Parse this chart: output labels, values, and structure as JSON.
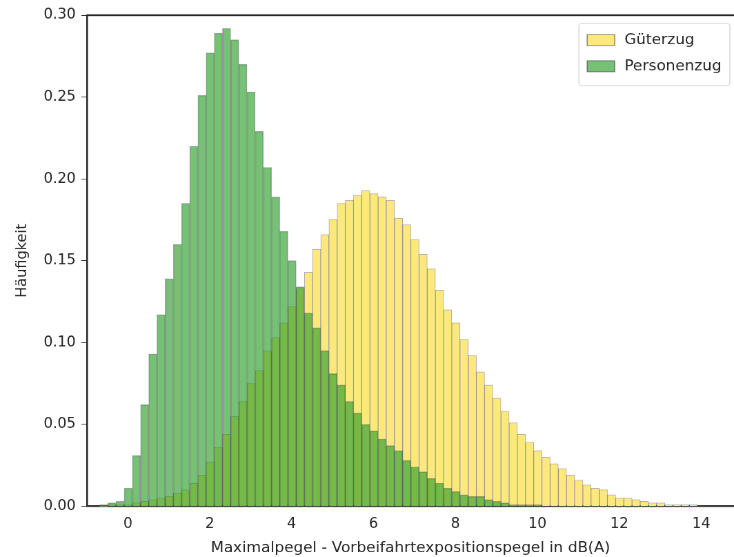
{
  "chart_data": {
    "type": "histogram",
    "xlabel": "Maximalpegel - Vorbeifahrtexpositionspegel in dB(A)",
    "ylabel": "Häufigkeit",
    "bins": [
      -0.69,
      -0.49,
      -0.29,
      -0.09,
      0.11,
      0.31,
      0.51,
      0.71,
      0.91,
      1.11,
      1.31,
      1.51,
      1.71,
      1.91,
      2.11,
      2.31,
      2.51,
      2.71,
      2.91,
      3.11,
      3.31,
      3.51,
      3.71,
      3.91,
      4.11,
      4.31,
      4.51,
      4.71,
      4.91,
      5.11,
      5.31,
      5.51,
      5.71,
      5.91,
      6.11,
      6.31,
      6.51,
      6.71,
      6.91,
      7.11,
      7.31,
      7.51,
      7.71,
      7.91,
      8.11,
      8.31,
      8.51,
      8.71,
      8.91,
      9.11,
      9.31,
      9.51,
      9.71,
      9.91,
      10.11,
      10.31,
      10.51,
      10.71,
      10.91,
      11.11,
      11.31,
      11.51,
      11.71,
      11.91,
      12.11,
      12.31,
      12.51,
      12.71,
      12.91,
      13.11,
      13.31,
      13.51,
      13.71,
      13.91
    ],
    "series": [
      {
        "name": "Güterzug",
        "color": "#fde87c",
        "values": [
          0,
          0.001,
          0.001,
          0.001,
          0.002,
          0.003,
          0.004,
          0.005,
          0.006,
          0.008,
          0.01,
          0.014,
          0.019,
          0.027,
          0.036,
          0.044,
          0.055,
          0.064,
          0.075,
          0.083,
          0.095,
          0.103,
          0.112,
          0.122,
          0.133,
          0.143,
          0.157,
          0.166,
          0.175,
          0.185,
          0.187,
          0.19,
          0.193,
          0.191,
          0.189,
          0.187,
          0.176,
          0.172,
          0.163,
          0.154,
          0.145,
          0.132,
          0.12,
          0.112,
          0.102,
          0.092,
          0.082,
          0.074,
          0.066,
          0.058,
          0.051,
          0.044,
          0.039,
          0.034,
          0.03,
          0.026,
          0.023,
          0.019,
          0.016,
          0.013,
          0.011,
          0.01,
          0.007,
          0.005,
          0.005,
          0.004,
          0.003,
          0.002,
          0.002,
          0.001,
          0.001,
          0.001,
          0.001
        ]
      },
      {
        "name": "Personenzug",
        "color": "#2ca02c",
        "values": [
          0.001,
          0.002,
          0.003,
          0.011,
          0.031,
          0.062,
          0.093,
          0.117,
          0.139,
          0.16,
          0.185,
          0.22,
          0.251,
          0.277,
          0.289,
          0.292,
          0.285,
          0.27,
          0.253,
          0.229,
          0.207,
          0.189,
          0.168,
          0.15,
          0.134,
          0.118,
          0.109,
          0.095,
          0.081,
          0.074,
          0.064,
          0.057,
          0.05,
          0.046,
          0.041,
          0.037,
          0.034,
          0.028,
          0.024,
          0.021,
          0.017,
          0.014,
          0.011,
          0.009,
          0.007,
          0.006,
          0.006,
          0.004,
          0.003,
          0.002,
          0.001,
          0.001,
          0.001,
          0.001,
          null,
          null,
          0,
          0,
          0,
          0,
          0,
          0,
          0,
          0,
          0,
          0,
          0,
          0,
          0,
          0,
          0,
          0,
          0
        ]
      }
    ],
    "xlim": [
      -1,
      14.8
    ],
    "xticks": [
      0,
      2,
      4,
      6,
      8,
      10,
      12,
      14
    ],
    "ylim": [
      0,
      0.3
    ],
    "yticks": [
      {
        "value": 0,
        "label": "0.00"
      },
      {
        "value": 0.05,
        "label": "0.05"
      },
      {
        "value": 0.1,
        "label": "0.10"
      },
      {
        "value": 0.15,
        "label": "0.15"
      },
      {
        "value": 0.2,
        "label": "0.20"
      },
      {
        "value": 0.25,
        "label": "0.25"
      },
      {
        "value": 0.3,
        "label": "0.30"
      }
    ],
    "legend": "top right"
  }
}
